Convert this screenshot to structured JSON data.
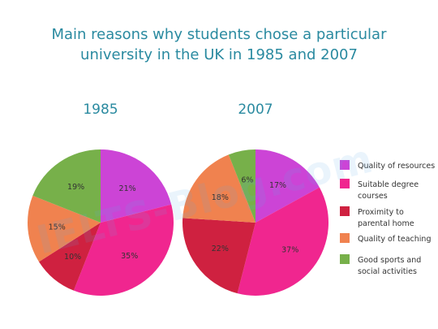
{
  "chart_data": {
    "type": "pie",
    "title_lines": [
      "Main reasons why students chose a particular",
      "university in the UK in 1985 and 2007"
    ],
    "categories": [
      "Quality of resources",
      "Suitable degree courses",
      "Proximity to parental home",
      "Quality of teaching",
      "Good sports and social activities"
    ],
    "legend_lines": [
      [
        "Quality of resources"
      ],
      [
        "Suitable degree",
        "courses"
      ],
      [
        "Proximity to",
        "parental home"
      ],
      [
        "Quality of teaching"
      ],
      [
        "Good sports and",
        "social activities"
      ]
    ],
    "colors": [
      "#cc44d6",
      "#f0268f",
      "#cf2140",
      "#f0824f",
      "#77b04a"
    ],
    "legend_placement": "right",
    "series": [
      {
        "name": "1985",
        "values": [
          21,
          35,
          10,
          15,
          19
        ],
        "labels": [
          "21%",
          "35%",
          "10%",
          "15%",
          "19%"
        ]
      },
      {
        "name": "2007",
        "values": [
          17,
          37,
          22,
          18,
          6
        ],
        "labels": [
          "17%",
          "37%",
          "22%",
          "18%",
          "6%"
        ]
      }
    ]
  },
  "watermark": "IELTS-Blog.com"
}
